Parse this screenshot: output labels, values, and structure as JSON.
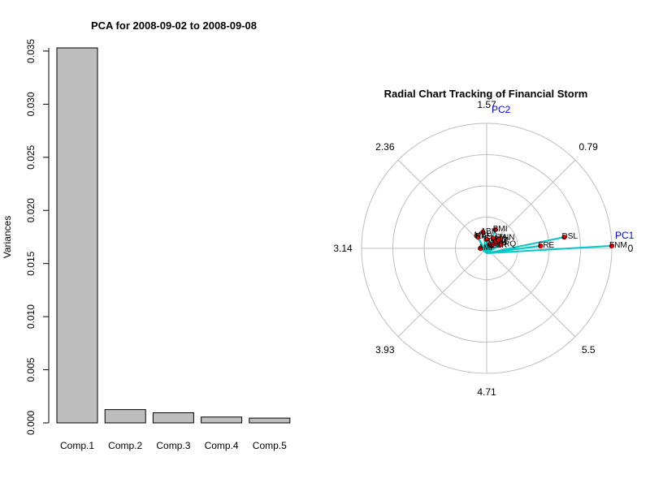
{
  "chart_data": [
    {
      "type": "bar",
      "title": "PCA for 2008-09-02 to 2008-09-08",
      "xlabel": "",
      "ylabel": "Variances",
      "categories": [
        "Comp.1",
        "Comp.2",
        "Comp.3",
        "Comp.4",
        "Comp.5"
      ],
      "values": [
        0.0353,
        0.00125,
        0.00095,
        0.00055,
        0.00045
      ],
      "ylim": [
        0,
        0.0355
      ],
      "yticks": [
        "0.000",
        "0.005",
        "0.010",
        "0.015",
        "0.020",
        "0.025",
        "0.030",
        "0.035"
      ],
      "bar_color": "#bebebe"
    },
    {
      "type": "scatter",
      "subtype": "radial",
      "title": "Radial Chart Tracking of Financial Storm",
      "axis_names": [
        "PC1",
        "PC2"
      ],
      "angle_labels": [
        "0",
        "0.79",
        "1.57",
        "2.36",
        "3.14",
        "3.93",
        "4.71",
        "5.5"
      ],
      "rings": 4,
      "radius_max": 1.0,
      "grid": true,
      "axis_label_color": "#0000ff",
      "point_color": "#ff0000",
      "arrow_color": "#00c8c8",
      "points": [
        {
          "label": "FNM",
          "x": 1.0,
          "y": 0.02
        },
        {
          "label": "FRE",
          "x": 0.43,
          "y": 0.02
        },
        {
          "label": "DSL",
          "x": 0.62,
          "y": 0.09
        },
        {
          "label": "BMI",
          "x": 0.07,
          "y": 0.15
        },
        {
          "label": "ABK",
          "x": -0.03,
          "y": 0.13
        },
        {
          "label": "MBI",
          "x": -0.08,
          "y": 0.1
        },
        {
          "label": "RAS",
          "x": -0.07,
          "y": 0.09
        },
        {
          "label": "GNW",
          "x": 0.0,
          "y": 0.07
        },
        {
          "label": "LEH",
          "x": 0.05,
          "y": 0.08
        },
        {
          "label": "AIG",
          "x": 0.02,
          "y": 0.03
        },
        {
          "label": "WM",
          "x": 0.06,
          "y": 0.04
        },
        {
          "label": "MER",
          "x": 0.04,
          "y": 0.02
        },
        {
          "label": "CFC",
          "x": 0.07,
          "y": 0.05
        },
        {
          "label": "TNN",
          "x": 0.11,
          "y": 0.08
        },
        {
          "label": "CIT",
          "x": 0.09,
          "y": 0.06
        },
        {
          "label": "HRQ",
          "x": 0.11,
          "y": 0.03
        },
        {
          "label": "AMF",
          "x": -0.05,
          "y": 0.0
        }
      ]
    }
  ]
}
